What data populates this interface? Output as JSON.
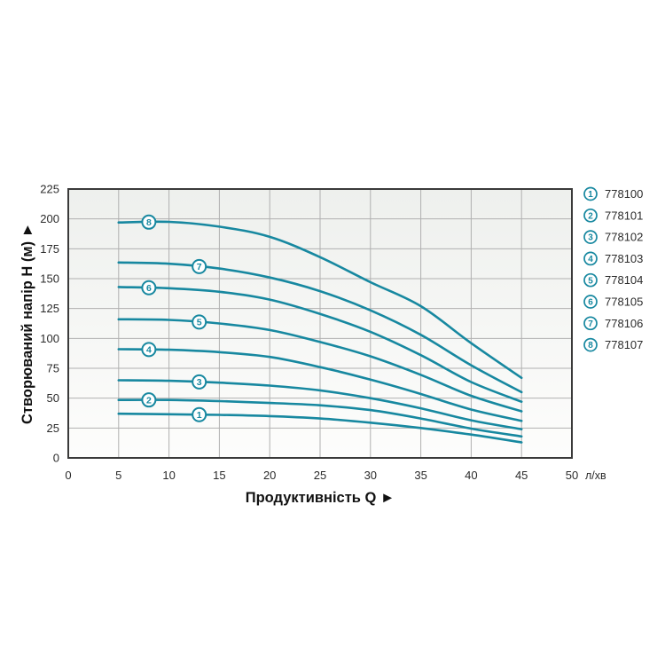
{
  "chart_data": {
    "type": "line",
    "title": "",
    "xlabel": "Продуктивність  Q",
    "xlabel_arrow": "►",
    "ylabel": "Створюваний напір H (м)",
    "ylabel_arrow": "►",
    "x_unit": "л/хв",
    "xlim": [
      0,
      50
    ],
    "ylim": [
      0,
      225
    ],
    "x_ticks": [
      0,
      5,
      10,
      15,
      20,
      25,
      30,
      35,
      40,
      45,
      50
    ],
    "y_ticks": [
      0,
      25,
      50,
      75,
      100,
      125,
      150,
      175,
      200,
      225
    ],
    "grid": true,
    "legend_position": "right-outside",
    "x": [
      5,
      10,
      15,
      20,
      25,
      30,
      35,
      40,
      45
    ],
    "series": [
      {
        "id": "1",
        "name": "778100",
        "label_q": 13,
        "values": [
          37,
          36.5,
          36,
          35,
          33,
          29.5,
          25,
          19.5,
          13
        ]
      },
      {
        "id": "2",
        "name": "778101",
        "label_q": 8,
        "values": [
          48.5,
          48.5,
          47.5,
          46,
          44,
          40,
          33,
          24.5,
          18
        ]
      },
      {
        "id": "3",
        "name": "778102",
        "label_q": 13,
        "values": [
          65,
          64.5,
          63,
          60.5,
          56.5,
          50,
          41.5,
          31.5,
          24
        ]
      },
      {
        "id": "4",
        "name": "778103",
        "label_q": 8,
        "values": [
          91,
          90.5,
          88.5,
          84.5,
          76,
          65.5,
          53.5,
          40.5,
          31
        ]
      },
      {
        "id": "5",
        "name": "778104",
        "label_q": 13,
        "values": [
          116,
          115.5,
          112.5,
          107,
          97,
          85,
          69.5,
          52,
          39
        ]
      },
      {
        "id": "6",
        "name": "778105",
        "label_q": 8,
        "values": [
          143,
          142,
          139,
          132.5,
          120.5,
          105.5,
          86,
          63.5,
          47
        ]
      },
      {
        "id": "7",
        "name": "778106",
        "label_q": 13,
        "values": [
          163.5,
          162.5,
          158.5,
          151,
          139.5,
          123.5,
          103,
          77.5,
          55
        ]
      },
      {
        "id": "8",
        "name": "778107",
        "label_q": 8,
        "values": [
          197,
          197.5,
          193.5,
          185,
          168,
          147,
          127,
          96,
          67
        ]
      }
    ],
    "colors": {
      "curve": "#1788a0",
      "curve_label_ring": "#1788a0",
      "curve_label_text": "#1788a0",
      "grid": "#b0b0b0",
      "frame": "#3a3a3a",
      "tick_text": "#2b2b2b",
      "axis_title_text": "#111111",
      "legend_ring": "#1788a0",
      "legend_num": "#1788a0",
      "legend_text": "#2b2b2b",
      "plot_bg_top": "#eef0ed",
      "plot_bg_bottom": "#fdfdfc",
      "page_bg": "#ffffff"
    }
  },
  "legend": {
    "items": [
      {
        "num": "1",
        "model": "778100"
      },
      {
        "num": "2",
        "model": "778101"
      },
      {
        "num": "3",
        "model": "778102"
      },
      {
        "num": "4",
        "model": "778103"
      },
      {
        "num": "5",
        "model": "778104"
      },
      {
        "num": "6",
        "model": "778105"
      },
      {
        "num": "7",
        "model": "778106"
      },
      {
        "num": "8",
        "model": "778107"
      }
    ]
  }
}
